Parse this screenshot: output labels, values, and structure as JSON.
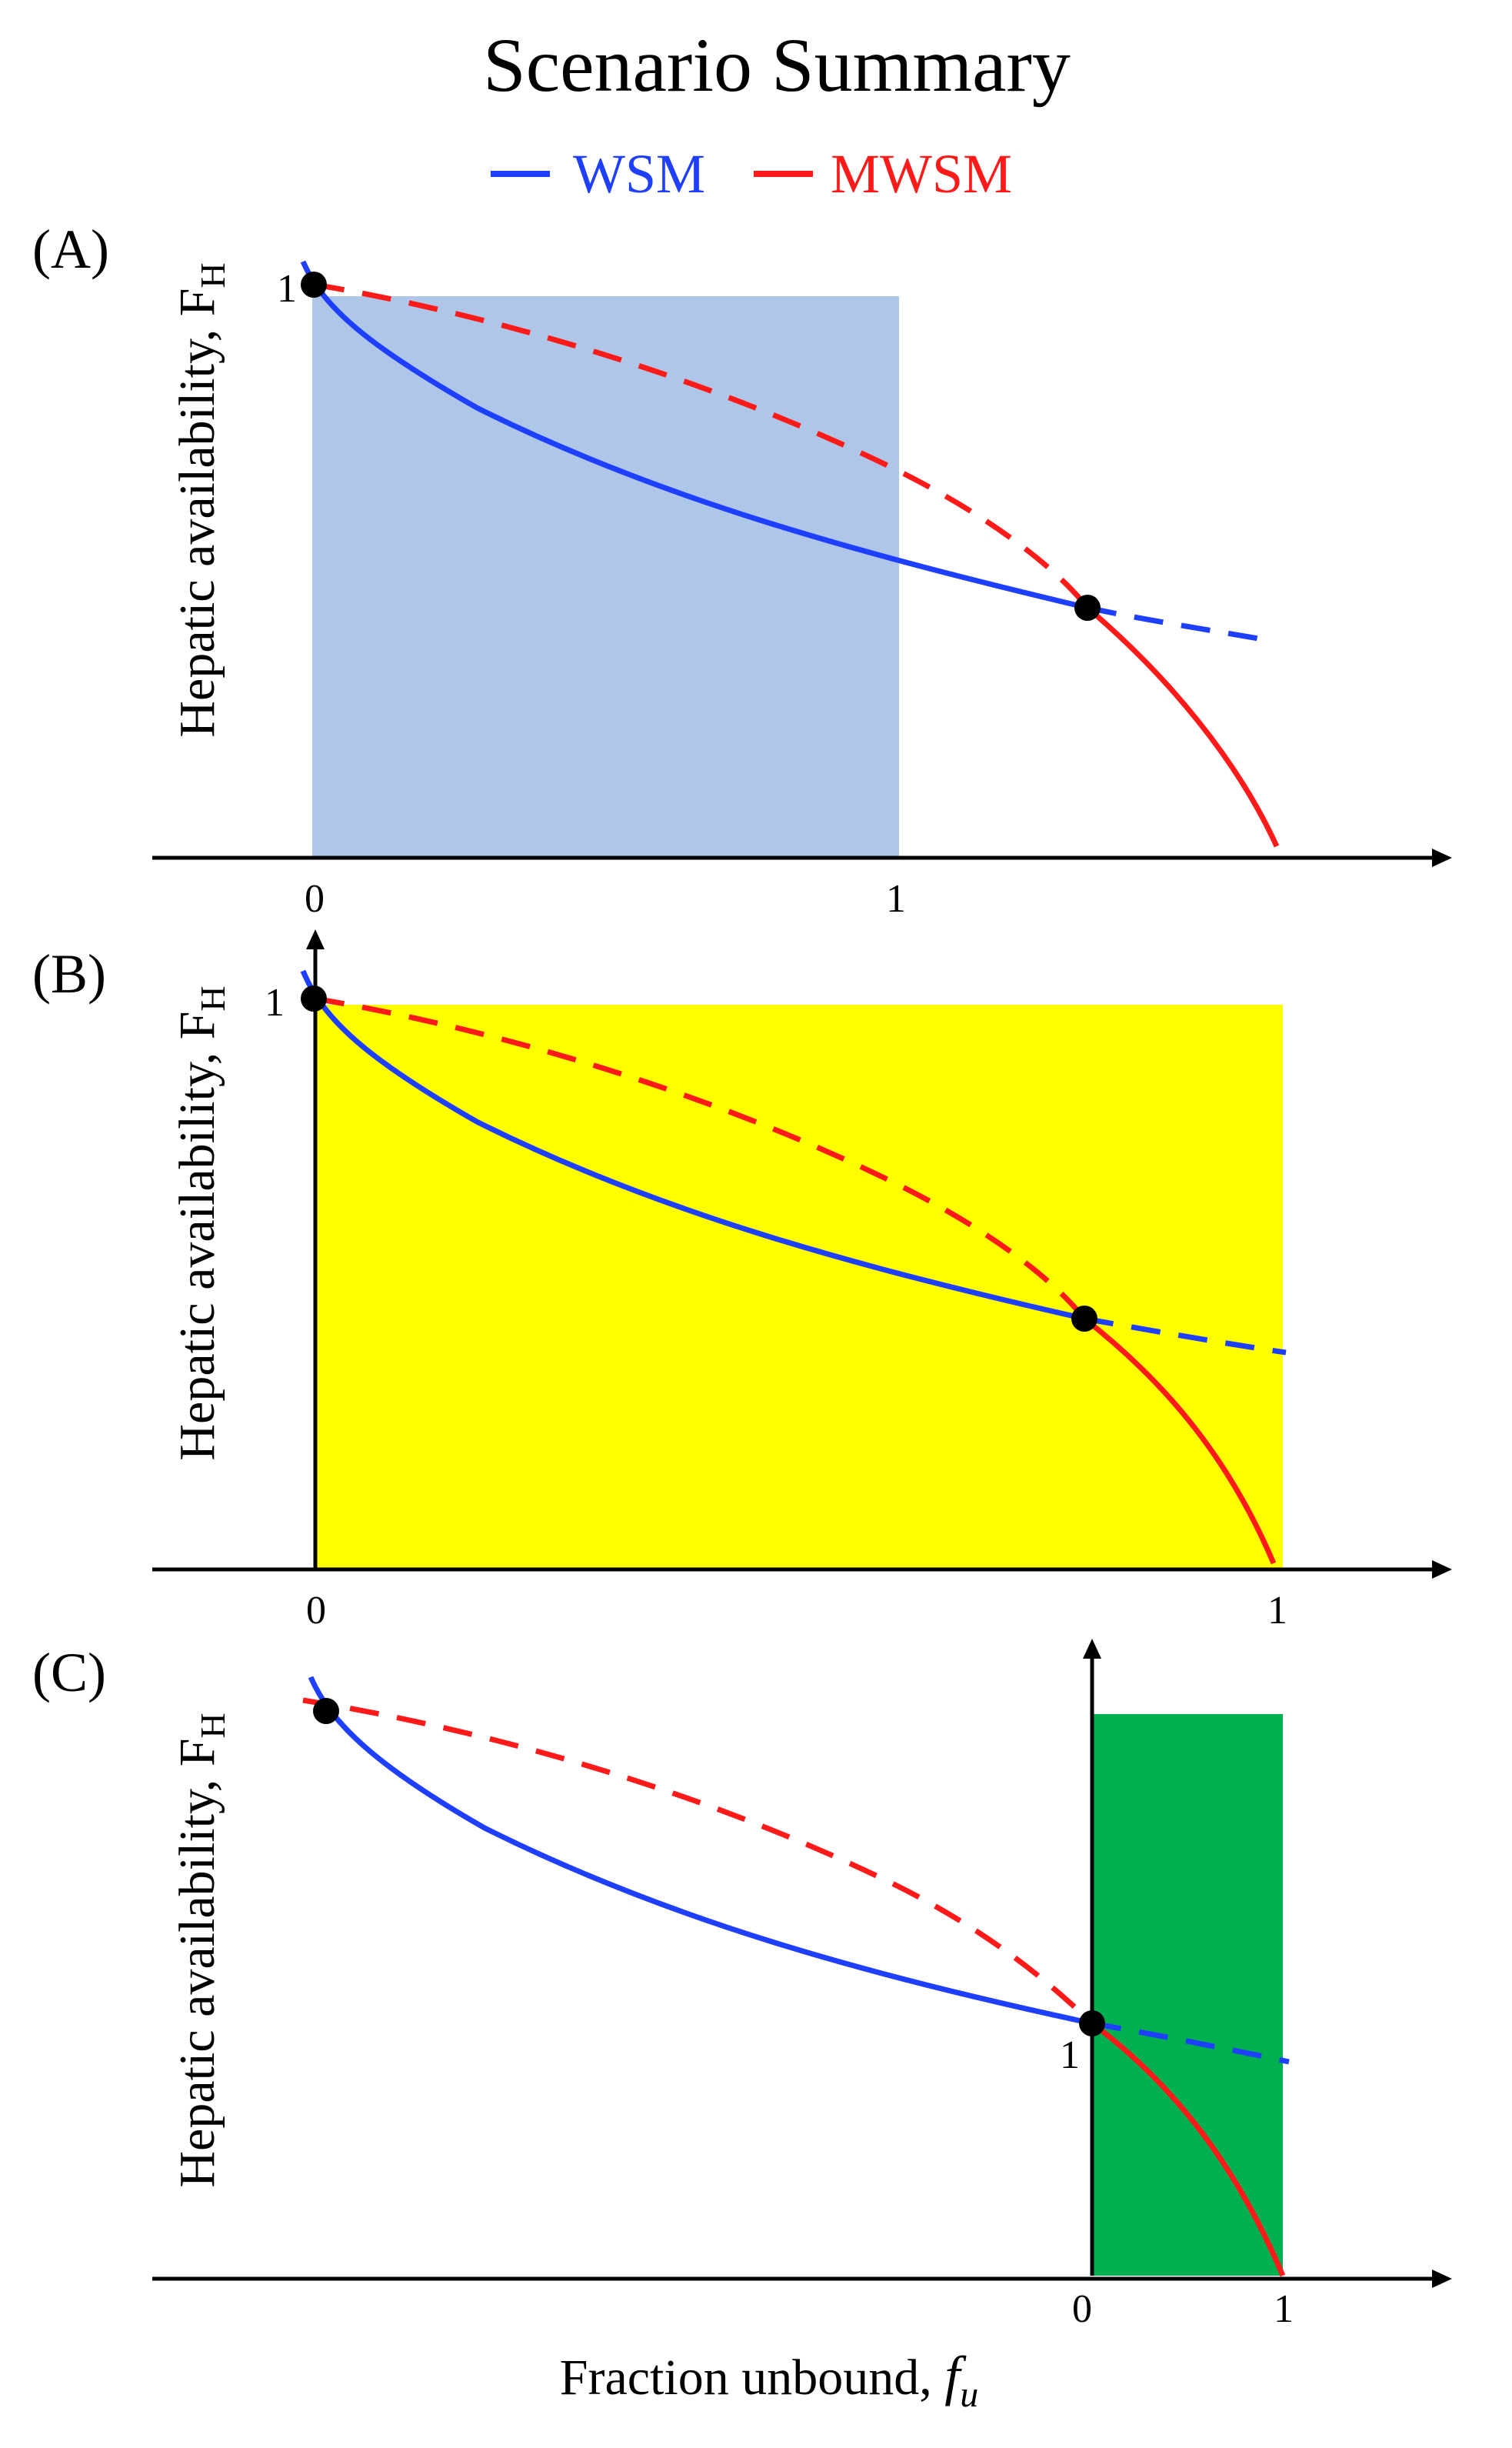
{
  "title": "Scenario Summary",
  "legend": [
    {
      "label": "WSM",
      "color": "#1f3fff"
    },
    {
      "label": "MWSM",
      "color": "#ff1a1a"
    }
  ],
  "colors": {
    "wsm": "#1f3fff",
    "mwsm": "#ff1a1a",
    "axis": "#000000",
    "panel_a_fill": "#aec7e8",
    "panel_b_fill": "#ffff00",
    "panel_c_fill": "#00b050"
  },
  "y_axis_label": {
    "main": "Hepatic availability, F",
    "subscript": "H"
  },
  "x_axis_label": {
    "main": "Fraction unbound, ",
    "symbol": "f",
    "subscript": "u"
  },
  "panels": [
    {
      "label": "(A)",
      "y_tick": "1",
      "x_ticks": [
        "0",
        "1"
      ]
    },
    {
      "label": "(B)",
      "y_tick": "1",
      "x_ticks": [
        "0",
        "1"
      ]
    },
    {
      "label": "(C)",
      "y_tick": "1",
      "x_ticks": [
        "0",
        "1"
      ]
    }
  ]
}
